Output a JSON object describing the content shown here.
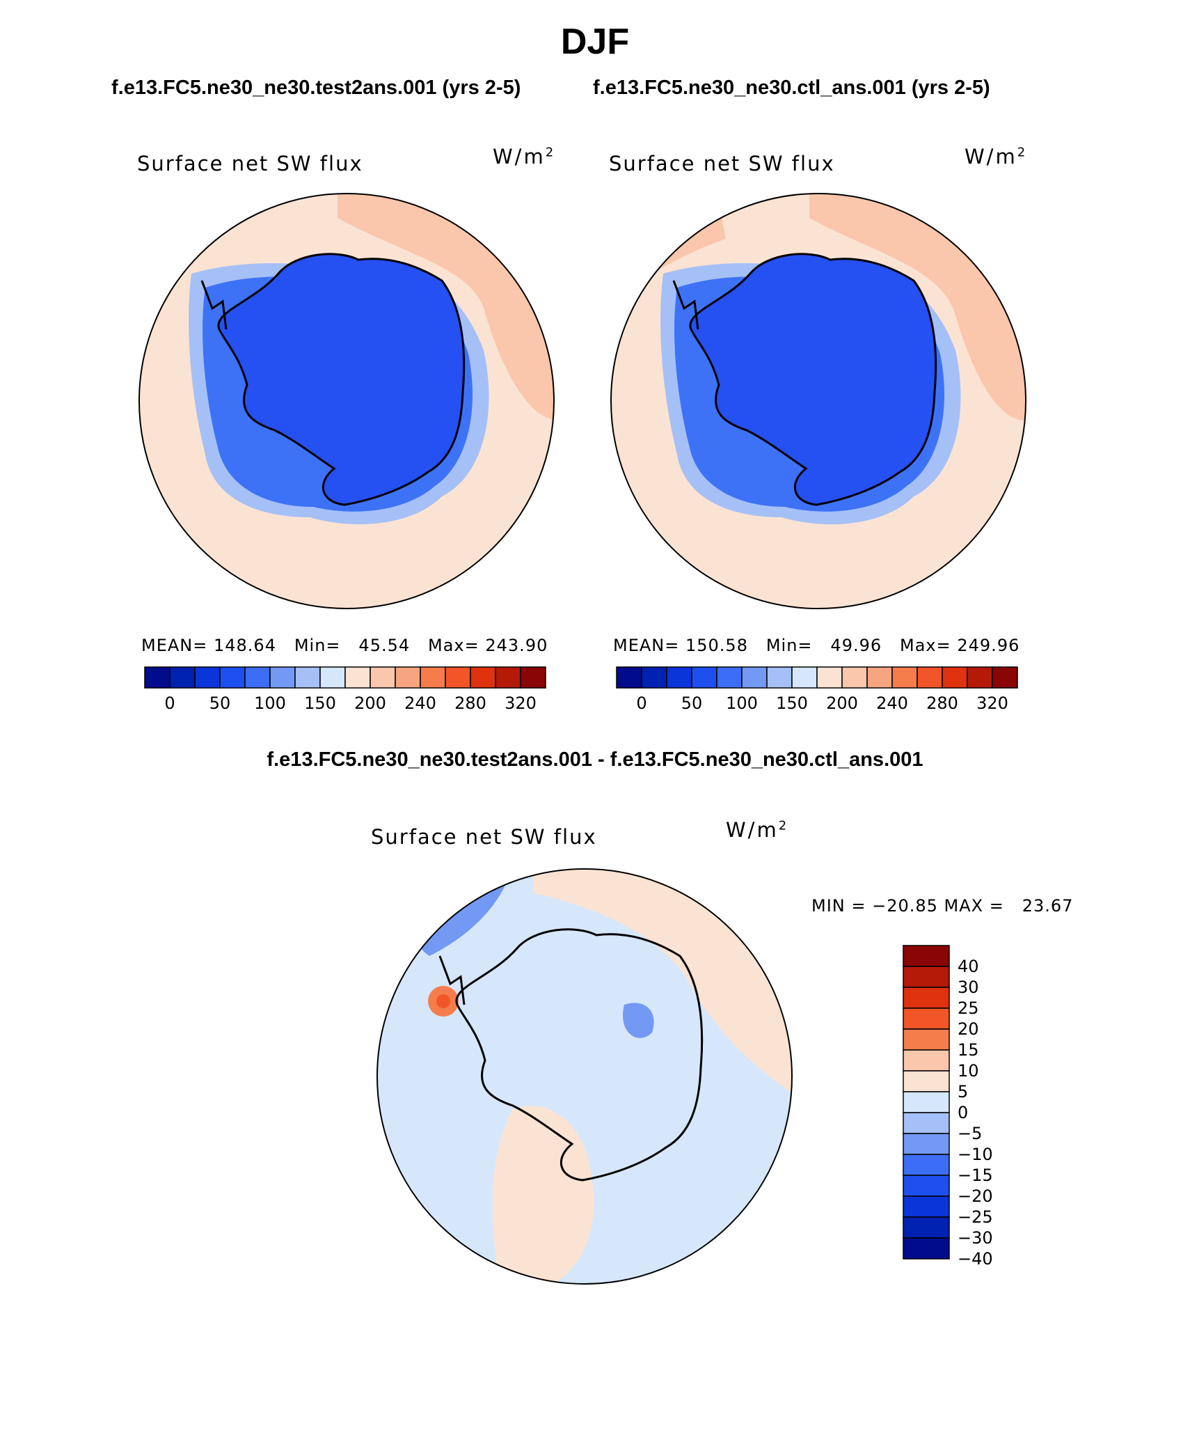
{
  "title": "DJF",
  "panels": [
    {
      "case_title": "f.e13.FC5.ne30_ne30.test2ans.001 (yrs 2-5)",
      "variable": "Surface net SW flux",
      "units_base": "W/m",
      "units_exp": "2",
      "stats": "MEAN= 148.64   Min=   45.54   Max= 243.90",
      "colorbar_labels": [
        "0",
        "50",
        "100",
        "150",
        "200",
        "240",
        "280",
        "320"
      ]
    },
    {
      "case_title": "f.e13.FC5.ne30_ne30.ctl_ans.001 (yrs 2-5)",
      "variable": "Surface net SW flux",
      "units_base": "W/m",
      "units_exp": "2",
      "stats": "MEAN= 150.58   Min=   49.96   Max= 249.96",
      "colorbar_labels": [
        "0",
        "50",
        "100",
        "150",
        "200",
        "240",
        "280",
        "320"
      ]
    }
  ],
  "diff": {
    "title": "f.e13.FC5.ne30_ne30.test2ans.001 - f.e13.FC5.ne30_ne30.ctl_ans.001",
    "variable": "Surface net SW flux",
    "units_base": "W/m",
    "units_exp": "2",
    "stats": "MIN = −20.85 MAX =   23.67",
    "colorbar_labels": [
      "40",
      "30",
      "25",
      "20",
      "15",
      "10",
      "5",
      "0",
      "−5",
      "−10",
      "−15",
      "−20",
      "−25",
      "−30",
      "−40"
    ]
  },
  "colors": {
    "abs_palette": [
      "#000c8c",
      "#0022b0",
      "#0a35d8",
      "#1e50f0",
      "#3c6ef5",
      "#7399f4",
      "#a5c0f7",
      "#d6e7fb",
      "#fbe3d3",
      "#fac6ac",
      "#f7a581",
      "#f57d4c",
      "#f25628",
      "#e0320e",
      "#b51a08",
      "#8a0505"
    ],
    "diff_palette": [
      "#8a0505",
      "#b51a08",
      "#e0320e",
      "#f25628",
      "#f57d4c",
      "#fac6ac",
      "#fbe3d3",
      "#d6e7fb",
      "#a5c0f7",
      "#7399f4",
      "#3c6ef5",
      "#1e50f0",
      "#0a35d8",
      "#0022b0",
      "#000c8c"
    ],
    "antarctica_fill": "#2550f2",
    "coast_halo": "#3e72f6",
    "ocean_light": "#fbe3d3",
    "ocean_warm": "#fac6ac",
    "diff_base": "#d6e7fb"
  }
}
